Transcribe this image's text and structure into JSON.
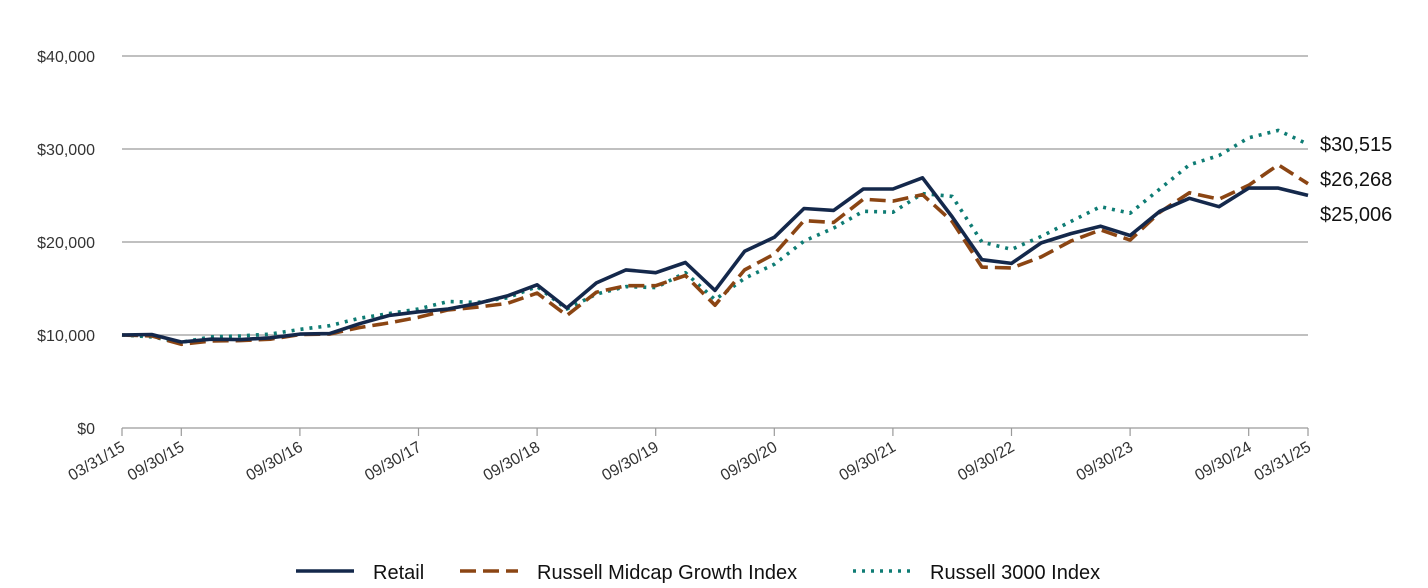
{
  "chart_data": {
    "type": "line",
    "title": "",
    "xlabel": "",
    "ylabel": "",
    "ylim": [
      0,
      40000
    ],
    "y_ticks": [
      0,
      10000,
      20000,
      30000,
      40000
    ],
    "y_tick_labels": [
      "$0",
      "$10,000",
      "$20,000",
      "$30,000",
      "$40,000"
    ],
    "x_tick_labels": [
      "03/31/15",
      "09/30/15",
      "09/30/16",
      "09/30/17",
      "09/30/18",
      "09/30/19",
      "09/30/20",
      "09/30/21",
      "09/30/22",
      "09/30/23",
      "09/30/24",
      "03/31/25"
    ],
    "x_tick_index": [
      0,
      2,
      6,
      10,
      14,
      18,
      22,
      26,
      30,
      34,
      38,
      40
    ],
    "grid": true,
    "legend_position": "bottom",
    "x": [
      "03/31/15",
      "06/30/15",
      "09/30/15",
      "12/31/15",
      "03/31/16",
      "06/30/16",
      "09/30/16",
      "12/31/16",
      "03/31/17",
      "06/30/17",
      "09/30/17",
      "12/31/17",
      "03/31/18",
      "06/30/18",
      "09/30/18",
      "12/31/18",
      "03/31/19",
      "06/30/19",
      "09/30/19",
      "12/31/19",
      "03/31/20",
      "06/30/20",
      "09/30/20",
      "12/31/20",
      "03/31/21",
      "06/30/21",
      "09/30/21",
      "12/31/21",
      "03/31/22",
      "06/30/22",
      "09/30/22",
      "12/31/22",
      "03/31/23",
      "06/30/23",
      "09/30/23",
      "12/31/23",
      "03/31/24",
      "06/30/24",
      "09/30/24",
      "12/31/24",
      "03/31/25"
    ],
    "series": [
      {
        "name": "Retail",
        "color": "#14284b",
        "style": "solid",
        "values": [
          10000,
          10050,
          9250,
          9550,
          9500,
          9700,
          10100,
          10150,
          11200,
          12100,
          12500,
          12800,
          13400,
          14200,
          15400,
          12900,
          15600,
          17000,
          16700,
          17800,
          14800,
          19000,
          20500,
          23600,
          23400,
          25700,
          25700,
          26900,
          22700,
          18100,
          17700,
          19900,
          20900,
          21700,
          20700,
          23300,
          24700,
          23800,
          25800,
          25800,
          25006
        ],
        "end_label": "$25,006"
      },
      {
        "name": "Russell Midcap Growth Index",
        "color": "#8b4513",
        "style": "dashed",
        "values": [
          10000,
          9900,
          9000,
          9350,
          9400,
          9550,
          10050,
          10100,
          10800,
          11300,
          11900,
          12700,
          13000,
          13400,
          14500,
          12100,
          14600,
          15300,
          15300,
          16400,
          13200,
          17000,
          18700,
          22300,
          22100,
          24600,
          24400,
          25100,
          22200,
          17300,
          17200,
          18400,
          20100,
          21300,
          20200,
          23200,
          25300,
          24600,
          26100,
          28300,
          26268
        ],
        "end_label": "$26,268"
      },
      {
        "name": "Russell 3000 Index",
        "color": "#0e7c74",
        "style": "dotted",
        "values": [
          10000,
          9800,
          9200,
          9800,
          9900,
          10100,
          10600,
          11000,
          11800,
          12300,
          12800,
          13600,
          13500,
          14000,
          15200,
          12800,
          14400,
          15200,
          15100,
          16700,
          13800,
          16100,
          17600,
          20100,
          21500,
          23300,
          23200,
          25200,
          24900,
          20000,
          19200,
          20600,
          22200,
          23800,
          23100,
          25700,
          28300,
          29300,
          31200,
          32000,
          30515
        ],
        "end_label": "$30,515"
      }
    ]
  }
}
